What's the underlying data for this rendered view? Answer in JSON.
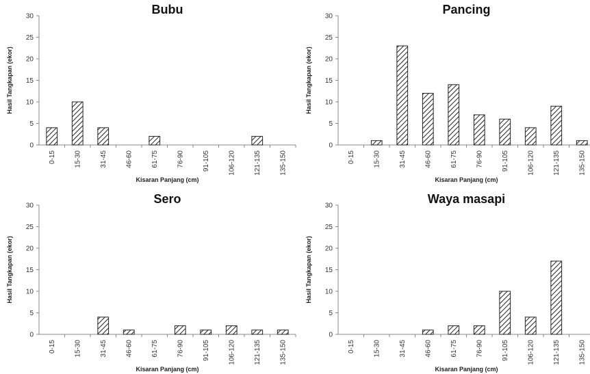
{
  "chart_data": [
    {
      "type": "bar",
      "title": "Bubu",
      "xlabel": "Kisaran Panjang (cm)",
      "ylabel": "Hasil Tangkapan (ekor)",
      "categories": [
        "0-15",
        "15-30",
        "31-45",
        "46-60",
        "61-75",
        "76-90",
        "91-105",
        "106-120",
        "121-135",
        "135-150"
      ],
      "values": [
        4,
        10,
        4,
        0,
        2,
        0,
        0,
        0,
        2,
        0
      ],
      "ylim": [
        0,
        30
      ],
      "yticks": [
        "0",
        "5",
        "10",
        "15",
        "20",
        "25",
        "30"
      ],
      "grid": false,
      "pattern": "diagonal-hatch"
    },
    {
      "type": "bar",
      "title": "Pancing",
      "xlabel": "Kisaran Panjang (cm)",
      "ylabel": "Hasil Tangkapan (ekor)",
      "categories": [
        "0-15",
        "15-30",
        "31-45",
        "46-60",
        "61-75",
        "76-90",
        "91-105",
        "106-120",
        "121-135",
        "135-150"
      ],
      "values": [
        0,
        1,
        23,
        12,
        14,
        7,
        6,
        4,
        9,
        1
      ],
      "ylim": [
        0,
        30
      ],
      "yticks": [
        "0",
        "5",
        "10",
        "15",
        "20",
        "25",
        "30"
      ],
      "grid": false,
      "pattern": "diagonal-hatch"
    },
    {
      "type": "bar",
      "title": "Sero",
      "xlabel": "Kisaran Panjang (cm)",
      "ylabel": "Hasil Tangkapan (ekor)",
      "categories": [
        "0-15",
        "15-30",
        "31-45",
        "46-60",
        "61-75",
        "76-90",
        "91-105",
        "106-120",
        "121-135",
        "135-150"
      ],
      "values": [
        0,
        0,
        4,
        1,
        0,
        2,
        1,
        2,
        1,
        1
      ],
      "ylim": [
        0,
        30
      ],
      "yticks": [
        "0",
        "5",
        "10",
        "15",
        "20",
        "25",
        "30"
      ],
      "grid": false,
      "pattern": "diagonal-hatch"
    },
    {
      "type": "bar",
      "title": "Waya masapi",
      "xlabel": "Kisaran Panjang (cm)",
      "ylabel": "Hasil Tangkapan (ekor)",
      "categories": [
        "0-15",
        "15-30",
        "31-45",
        "46-60",
        "61-75",
        "76-90",
        "91-105",
        "106-120",
        "121-135",
        "135-150"
      ],
      "values": [
        0,
        0,
        0,
        1,
        2,
        2,
        10,
        4,
        17,
        0
      ],
      "ylim": [
        0,
        30
      ],
      "yticks": [
        "0",
        "5",
        "10",
        "15",
        "20",
        "25",
        "30"
      ],
      "grid": false,
      "pattern": "diagonal-hatch"
    }
  ]
}
